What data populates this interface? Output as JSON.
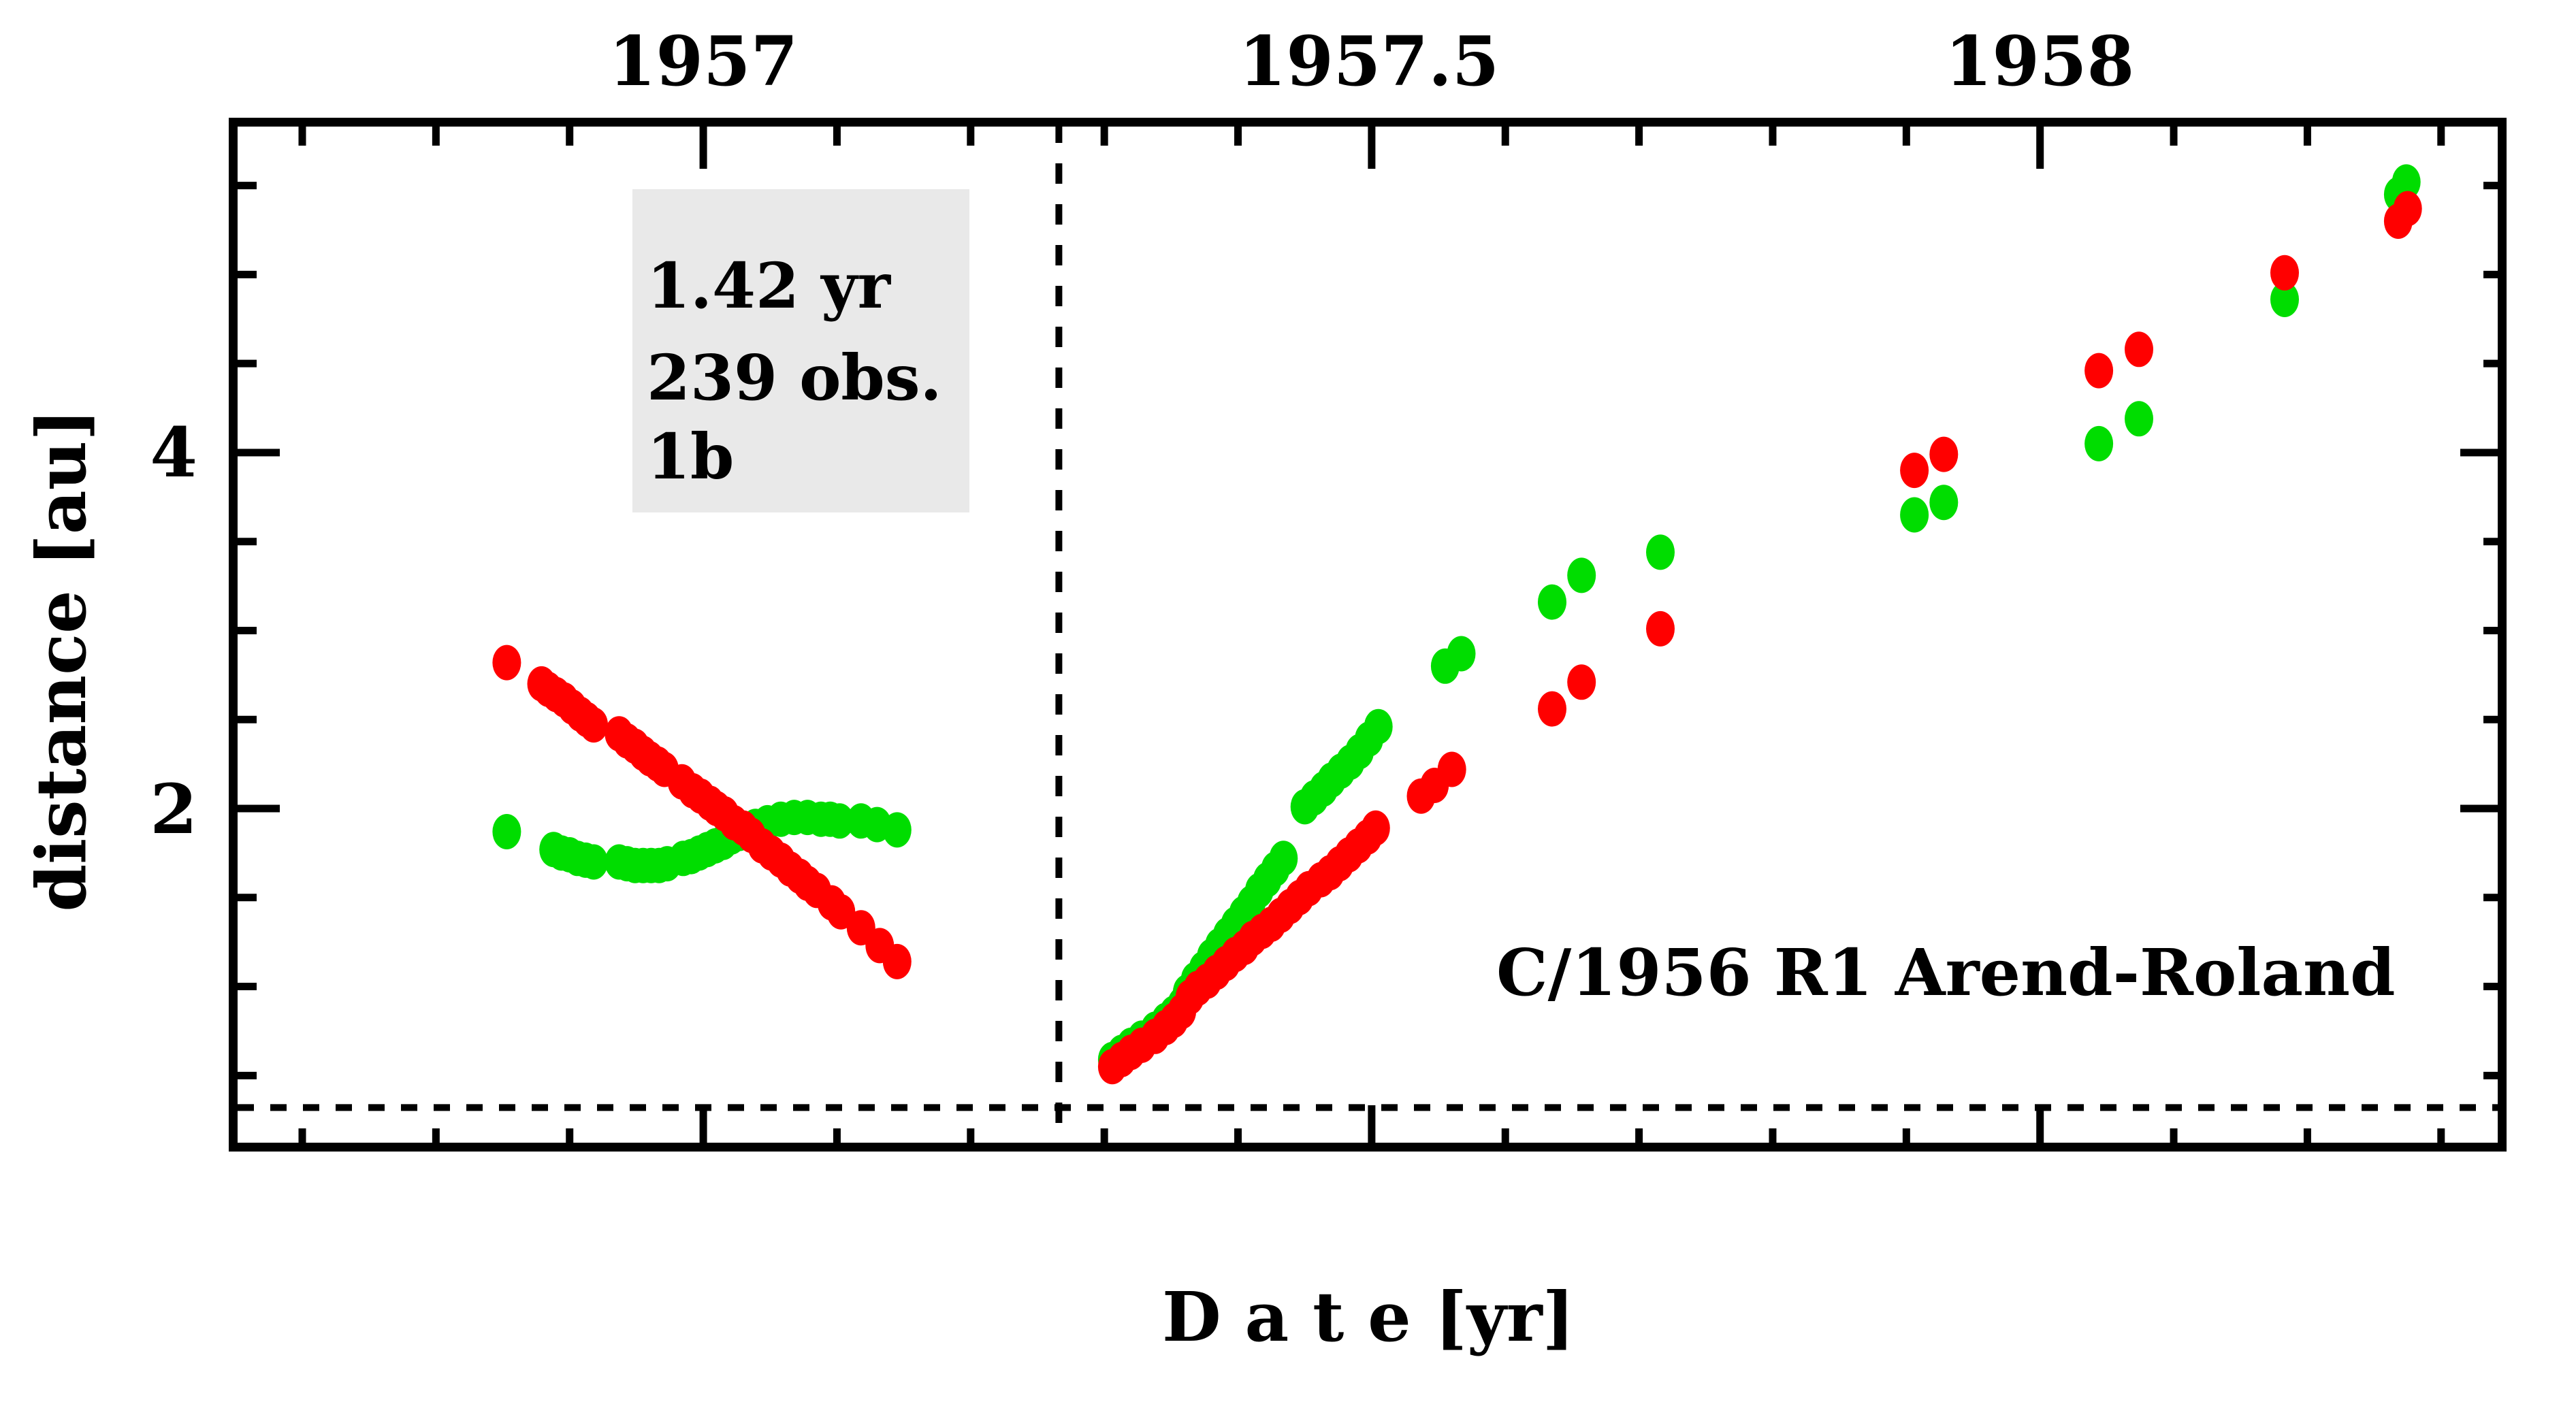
{
  "page": {
    "background": "#ffffff"
  },
  "chart_data": {
    "type": "scatter",
    "title": "",
    "comet_label": "C/1956 R1 Arend-Roland",
    "stats_box": {
      "lines": [
        "1.42 yr",
        "239 obs.",
        "1b"
      ],
      "bg_color": "#e9e9e9"
    },
    "x_axis": {
      "label": "D a t e [yr]",
      "range": [
        1956.645,
        1958.349
      ],
      "major_ticks": [
        {
          "value": 1957,
          "label": "1957"
        },
        {
          "value": 1957.5,
          "label": "1957.5"
        },
        {
          "value": 1958,
          "label": "1958"
        }
      ],
      "minor_ticks": [
        1956.7,
        1956.8,
        1956.9,
        1957.1,
        1957.2,
        1957.3,
        1957.4,
        1957.6,
        1957.7,
        1957.8,
        1957.9,
        1958.1,
        1958.2,
        1958.3
      ]
    },
    "y_axis": {
      "label": "distance [au]",
      "range": [
        0.073,
        5.881
      ],
      "major_ticks": [
        {
          "value": 2,
          "label": "2"
        },
        {
          "value": 4,
          "label": "4"
        }
      ],
      "minor_ticks": [
        0.5,
        1.0,
        1.5,
        2.5,
        3.0,
        3.5,
        4.5,
        5.0,
        5.5
      ]
    },
    "reference_lines": {
      "vertical_x": 1957.266,
      "horizontal_y": 0.32,
      "style": "dotted"
    },
    "grid": false,
    "legend": "none",
    "marker": {
      "rx": 21,
      "ry": 26
    },
    "series": [
      {
        "name": "green",
        "color": "#00dd00",
        "points": [
          [
            1956.853,
            1.87
          ],
          [
            1956.888,
            1.77
          ],
          [
            1956.894,
            1.75
          ],
          [
            1956.9,
            1.74
          ],
          [
            1956.906,
            1.72
          ],
          [
            1956.912,
            1.71
          ],
          [
            1956.918,
            1.7
          ],
          [
            1956.937,
            1.7
          ],
          [
            1956.943,
            1.69
          ],
          [
            1956.949,
            1.68
          ],
          [
            1956.955,
            1.68
          ],
          [
            1956.961,
            1.68
          ],
          [
            1956.967,
            1.68
          ],
          [
            1956.973,
            1.69
          ],
          [
            1956.985,
            1.72
          ],
          [
            1956.991,
            1.73
          ],
          [
            1956.997,
            1.75
          ],
          [
            1957.003,
            1.77
          ],
          [
            1957.009,
            1.79
          ],
          [
            1957.015,
            1.81
          ],
          [
            1957.021,
            1.84
          ],
          [
            1957.027,
            1.86
          ],
          [
            1957.033,
            1.88
          ],
          [
            1957.039,
            1.9
          ],
          [
            1957.048,
            1.92
          ],
          [
            1957.058,
            1.94
          ],
          [
            1957.068,
            1.95
          ],
          [
            1957.078,
            1.95
          ],
          [
            1957.088,
            1.94
          ],
          [
            1957.095,
            1.94
          ],
          [
            1957.102,
            1.93
          ],
          [
            1957.118,
            1.93
          ],
          [
            1957.13,
            1.91
          ],
          [
            1957.145,
            1.88
          ],
          [
            1957.306,
            0.59
          ],
          [
            1957.313,
            0.63
          ],
          [
            1957.32,
            0.67
          ],
          [
            1957.328,
            0.71
          ],
          [
            1957.338,
            0.76
          ],
          [
            1957.346,
            0.81
          ],
          [
            1957.352,
            0.85
          ],
          [
            1957.358,
            0.9
          ],
          [
            1957.362,
            0.97
          ],
          [
            1957.368,
            1.04
          ],
          [
            1957.374,
            1.1
          ],
          [
            1957.38,
            1.17
          ],
          [
            1957.386,
            1.23
          ],
          [
            1957.392,
            1.29
          ],
          [
            1957.398,
            1.35
          ],
          [
            1957.404,
            1.41
          ],
          [
            1957.41,
            1.47
          ],
          [
            1957.416,
            1.54
          ],
          [
            1957.422,
            1.6
          ],
          [
            1957.428,
            1.66
          ],
          [
            1957.434,
            1.72
          ],
          [
            1957.45,
            2.01
          ],
          [
            1957.457,
            2.06
          ],
          [
            1957.464,
            2.11
          ],
          [
            1957.47,
            2.16
          ],
          [
            1957.477,
            2.21
          ],
          [
            1957.484,
            2.26
          ],
          [
            1957.491,
            2.32
          ],
          [
            1957.498,
            2.39
          ],
          [
            1957.505,
            2.46
          ],
          [
            1957.555,
            2.8
          ],
          [
            1957.567,
            2.87
          ],
          [
            1957.635,
            3.16
          ],
          [
            1957.657,
            3.31
          ],
          [
            1957.716,
            3.44
          ],
          [
            1957.906,
            3.65
          ],
          [
            1957.928,
            3.72
          ],
          [
            1958.044,
            4.05
          ],
          [
            1958.074,
            4.19
          ],
          [
            1958.183,
            4.86
          ],
          [
            1958.268,
            5.45
          ],
          [
            1958.274,
            5.52
          ]
        ]
      },
      {
        "name": "red",
        "color": "#ff0000",
        "points": [
          [
            1956.853,
            2.82
          ],
          [
            1956.879,
            2.7
          ],
          [
            1956.884,
            2.67
          ],
          [
            1956.89,
            2.64
          ],
          [
            1956.896,
            2.61
          ],
          [
            1956.902,
            2.57
          ],
          [
            1956.908,
            2.53
          ],
          [
            1956.913,
            2.5
          ],
          [
            1956.918,
            2.47
          ],
          [
            1956.937,
            2.42
          ],
          [
            1956.943,
            2.38
          ],
          [
            1956.949,
            2.35
          ],
          [
            1956.955,
            2.31
          ],
          [
            1956.96,
            2.28
          ],
          [
            1956.966,
            2.25
          ],
          [
            1956.971,
            2.22
          ],
          [
            1956.984,
            2.15
          ],
          [
            1956.992,
            2.1
          ],
          [
            1956.998,
            2.07
          ],
          [
            1957.005,
            2.03
          ],
          [
            1957.01,
            2.0
          ],
          [
            1957.016,
            1.97
          ],
          [
            1957.023,
            1.92
          ],
          [
            1957.03,
            1.89
          ],
          [
            1957.036,
            1.85
          ],
          [
            1957.044,
            1.79
          ],
          [
            1957.051,
            1.75
          ],
          [
            1957.058,
            1.71
          ],
          [
            1957.065,
            1.66
          ],
          [
            1957.072,
            1.62
          ],
          [
            1957.078,
            1.58
          ],
          [
            1957.085,
            1.54
          ],
          [
            1957.096,
            1.47
          ],
          [
            1957.103,
            1.42
          ],
          [
            1957.118,
            1.33
          ],
          [
            1957.132,
            1.23
          ],
          [
            1957.145,
            1.14
          ],
          [
            1957.306,
            0.55
          ],
          [
            1957.313,
            0.59
          ],
          [
            1957.32,
            0.63
          ],
          [
            1957.328,
            0.67
          ],
          [
            1957.338,
            0.72
          ],
          [
            1957.346,
            0.77
          ],
          [
            1957.352,
            0.81
          ],
          [
            1957.358,
            0.86
          ],
          [
            1957.364,
            0.94
          ],
          [
            1957.37,
            0.99
          ],
          [
            1957.377,
            1.03
          ],
          [
            1957.384,
            1.08
          ],
          [
            1957.391,
            1.13
          ],
          [
            1957.398,
            1.18
          ],
          [
            1957.405,
            1.22
          ],
          [
            1957.411,
            1.27
          ],
          [
            1957.418,
            1.31
          ],
          [
            1957.425,
            1.35
          ],
          [
            1957.432,
            1.4
          ],
          [
            1957.439,
            1.45
          ],
          [
            1957.446,
            1.5
          ],
          [
            1957.453,
            1.55
          ],
          [
            1957.462,
            1.6
          ],
          [
            1957.469,
            1.64
          ],
          [
            1957.476,
            1.69
          ],
          [
            1957.483,
            1.74
          ],
          [
            1957.49,
            1.79
          ],
          [
            1957.497,
            1.84
          ],
          [
            1957.503,
            1.89
          ],
          [
            1957.537,
            2.07
          ],
          [
            1957.547,
            2.13
          ],
          [
            1957.56,
            2.22
          ],
          [
            1957.635,
            2.56
          ],
          [
            1957.657,
            2.71
          ],
          [
            1957.716,
            3.01
          ],
          [
            1957.906,
            3.9
          ],
          [
            1957.928,
            3.99
          ],
          [
            1958.044,
            4.46
          ],
          [
            1958.074,
            4.58
          ],
          [
            1958.183,
            5.01
          ],
          [
            1958.268,
            5.3
          ],
          [
            1958.275,
            5.37
          ]
        ]
      }
    ]
  }
}
